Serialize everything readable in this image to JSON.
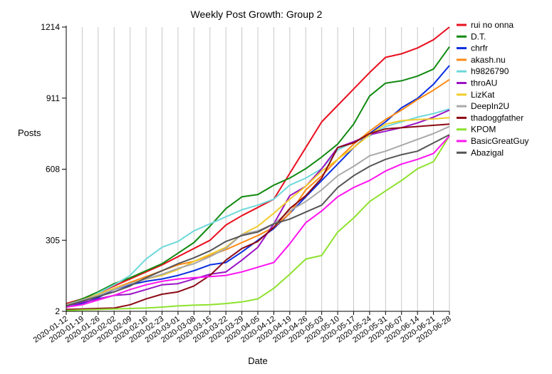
{
  "chart_data": {
    "type": "line",
    "title": "Weekly Post Growth: Group 2",
    "xlabel": "Date",
    "ylabel": "Posts",
    "yticks": [
      2,
      305,
      608,
      911,
      1214
    ],
    "ylim": [
      2,
      1214
    ],
    "grid": "vertical",
    "legend_position": "right",
    "x": [
      "2020-01-12",
      "2020-01-19",
      "2020-01-26",
      "2020-02-02",
      "2020-02-09",
      "2020-02-16",
      "2020-02-23",
      "2020-03-01",
      "2020-03-08",
      "2020-03-15",
      "2020-03-22",
      "2020-03-29",
      "2020-04-05",
      "2020-04-12",
      "2020-04-19",
      "2020-04-26",
      "2020-05-03",
      "2020-05-10",
      "2020-05-17",
      "2020-05-24",
      "2020-05-31",
      "2020-06-07",
      "2020-06-14",
      "2020-06-21",
      "2020-06-28"
    ],
    "series": [
      {
        "name": "rui no onna",
        "color": "#e8101e",
        "values": [
          35,
          55,
          80,
          110,
          140,
          170,
          200,
          235,
          270,
          305,
          370,
          410,
          445,
          480,
          590,
          700,
          810,
          880,
          950,
          1020,
          1085,
          1100,
          1125,
          1160,
          1214
        ]
      },
      {
        "name": "D.T.",
        "color": "#118a11",
        "values": [
          30,
          55,
          85,
          120,
          145,
          175,
          205,
          250,
          295,
          365,
          440,
          490,
          500,
          540,
          570,
          610,
          660,
          715,
          800,
          920,
          975,
          985,
          1005,
          1035,
          1130
        ]
      },
      {
        "name": "chrfr",
        "color": "#0b2ee0",
        "values": [
          20,
          35,
          60,
          95,
          115,
          130,
          140,
          155,
          175,
          200,
          210,
          255,
          305,
          355,
          420,
          490,
          560,
          630,
          700,
          760,
          810,
          870,
          910,
          970,
          1050
        ]
      },
      {
        "name": "akash.nu",
        "color": "#ff8a14",
        "values": [
          25,
          45,
          70,
          100,
          125,
          150,
          175,
          200,
          215,
          240,
          265,
          295,
          325,
          360,
          420,
          520,
          580,
          650,
          715,
          770,
          820,
          860,
          905,
          945,
          990
        ]
      },
      {
        "name": "h9826790",
        "color": "#6ed8da",
        "values": [
          20,
          45,
          80,
          115,
          155,
          225,
          275,
          300,
          345,
          375,
          405,
          435,
          455,
          480,
          540,
          570,
          610,
          690,
          725,
          750,
          790,
          810,
          830,
          845,
          865
        ]
      },
      {
        "name": "throAU",
        "color": "#9a14c6",
        "values": [
          25,
          40,
          55,
          70,
          75,
          95,
          115,
          120,
          140,
          160,
          170,
          220,
          275,
          375,
          495,
          535,
          610,
          700,
          725,
          755,
          770,
          785,
          805,
          830,
          860
        ]
      },
      {
        "name": "LizKat",
        "color": "#f2cc2a",
        "values": [
          30,
          50,
          75,
          100,
          120,
          140,
          155,
          180,
          215,
          245,
          275,
          330,
          365,
          420,
          480,
          535,
          600,
          650,
          700,
          755,
          800,
          815,
          820,
          822,
          828
        ]
      },
      {
        "name": "DeepIn2U",
        "color": "#a9a9a9",
        "values": [
          30,
          50,
          70,
          95,
          120,
          140,
          160,
          185,
          205,
          235,
          270,
          330,
          345,
          375,
          430,
          470,
          520,
          580,
          620,
          665,
          685,
          710,
          735,
          760,
          790
        ]
      },
      {
        "name": "thadoggfather",
        "color": "#8b0a14",
        "values": [
          10,
          12,
          14,
          16,
          30,
          55,
          75,
          85,
          110,
          155,
          220,
          270,
          300,
          360,
          440,
          495,
          570,
          700,
          720,
          760,
          780,
          785,
          790,
          795,
          800
        ]
      },
      {
        "name": "KPOM",
        "color": "#8ee22e",
        "values": [
          5,
          8,
          10,
          12,
          14,
          16,
          20,
          25,
          28,
          30,
          35,
          42,
          55,
          100,
          160,
          225,
          240,
          340,
          400,
          470,
          515,
          560,
          610,
          640,
          750
        ]
      },
      {
        "name": "BasicGreatGuy",
        "color": "#ff14f0",
        "values": [
          20,
          30,
          50,
          70,
          95,
          115,
          130,
          140,
          145,
          150,
          155,
          170,
          190,
          210,
          290,
          380,
          430,
          490,
          530,
          560,
          600,
          630,
          650,
          675,
          750
        ]
      },
      {
        "name": "Abazigal",
        "color": "#555555",
        "values": [
          25,
          45,
          65,
          85,
          110,
          145,
          175,
          205,
          230,
          260,
          300,
          325,
          340,
          375,
          395,
          425,
          455,
          530,
          580,
          620,
          650,
          670,
          685,
          720,
          755
        ]
      }
    ]
  }
}
